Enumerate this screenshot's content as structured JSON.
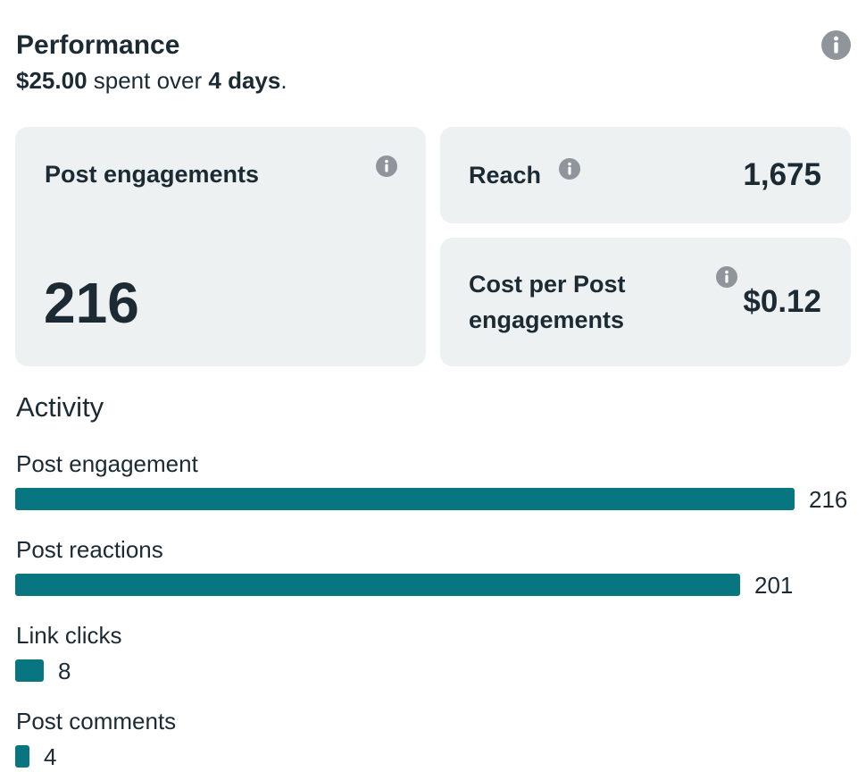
{
  "header": {
    "title": "Performance",
    "spent_amount": "$25.00",
    "spent_middle": "spent over",
    "days": "4 days",
    "period_end": "."
  },
  "cards": {
    "post_engagements": {
      "label": "Post engagements",
      "value": "216"
    },
    "reach": {
      "label": "Reach",
      "value": "1,675"
    },
    "cost_per": {
      "label_line1": "Cost per Post",
      "label_line2": "engagements",
      "value": "$0.12"
    }
  },
  "activity": {
    "title": "Activity",
    "max": 216,
    "items": [
      {
        "label": "Post engagement",
        "value": 216,
        "display": "216"
      },
      {
        "label": "Post reactions",
        "value": 201,
        "display": "201"
      },
      {
        "label": "Link clicks",
        "value": 8,
        "display": "8"
      },
      {
        "label": "Post comments",
        "value": 4,
        "display": "4"
      }
    ]
  },
  "colors": {
    "bar": "#077680",
    "card_bg": "#edf1f2",
    "text": "#1c2b33",
    "icon": "#90959b"
  },
  "icons": {
    "info": "info-icon"
  }
}
